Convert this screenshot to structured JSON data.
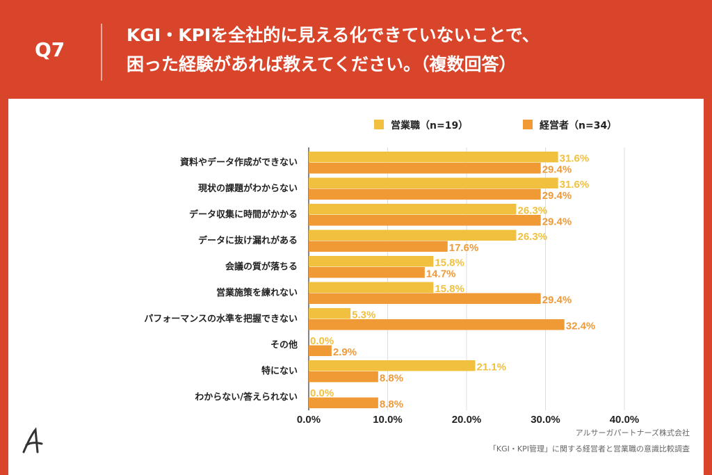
{
  "header": {
    "question": "Q7",
    "title_line1": "KGI・KPIを全社的に見える化できていないことで、",
    "title_line2": "困った経験があれば教えてください。（複数回答）"
  },
  "colors": {
    "background": "#d9452b",
    "series_sales": "#f0c03e",
    "series_exec": "#f09a35",
    "label_sales": "#f0c03e",
    "label_exec": "#ee9a3a"
  },
  "chart_data": {
    "type": "bar",
    "orientation": "horizontal",
    "categories": [
      "資料やデータ作成ができない",
      "現状の課題がわからない",
      "データ収集に時間がかかる",
      "データに抜け漏れがある",
      "会議の質が落ちる",
      "営業施策を練れない",
      "パフォーマンスの水準を把握できない",
      "その他",
      "特にない",
      "わからない/答えられない"
    ],
    "series": [
      {
        "name": "営業職（n=19）",
        "values": [
          31.6,
          31.6,
          26.3,
          26.3,
          15.8,
          15.8,
          5.3,
          0.0,
          21.1,
          0.0
        ]
      },
      {
        "name": "経営者（n=34）",
        "values": [
          29.4,
          29.4,
          29.4,
          17.6,
          14.7,
          29.4,
          32.4,
          2.9,
          8.8,
          8.8
        ]
      }
    ],
    "xlim": [
      0,
      40
    ],
    "xticks": [
      "0.0%",
      "10.0%",
      "20.0%",
      "30.0%",
      "40.0%"
    ],
    "legend_position": "top-right",
    "grid": true
  },
  "footer": {
    "company": "アルサーガパートナーズ株式会社",
    "survey": "「KGI・KPI管理」に関する経営者と営業職の意識比較調査"
  }
}
